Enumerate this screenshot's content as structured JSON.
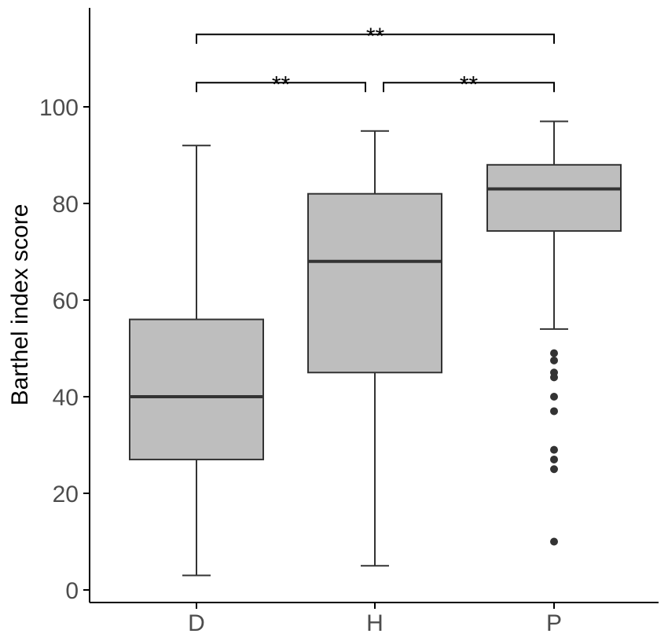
{
  "chart_data": {
    "type": "boxplot",
    "title": "",
    "xlabel": "",
    "ylabel": "Barthel index score",
    "ylim": [
      -2.5,
      119
    ],
    "yticks": [
      0,
      20,
      40,
      60,
      80,
      100
    ],
    "grid": false,
    "categories": [
      "D",
      "H",
      "P"
    ],
    "boxes": [
      {
        "category": "D",
        "whisker_low": 3,
        "q1": 27,
        "median": 40,
        "q3": 56,
        "whisker_high": 92,
        "outliers": []
      },
      {
        "category": "H",
        "whisker_low": 5,
        "q1": 45,
        "median": 68,
        "q3": 82,
        "whisker_high": 95,
        "outliers": []
      },
      {
        "category": "P",
        "whisker_low": 54,
        "q1": 74.3,
        "median": 83,
        "q3": 88,
        "whisker_high": 97,
        "outliers": [
          49,
          47.5,
          45,
          44,
          40,
          37,
          29,
          27,
          25,
          10
        ]
      }
    ],
    "comparisons": [
      {
        "from": "D",
        "to": "H",
        "label": "**",
        "y": 105
      },
      {
        "from": "H",
        "to": "P",
        "label": "**",
        "y": 105
      },
      {
        "from": "D",
        "to": "P",
        "label": "**",
        "y": 115
      }
    ],
    "colors": {
      "box_fill": "#bebebe",
      "line": "#333333",
      "axis": "#000000",
      "bracket": "#000000",
      "tick_text": "#4d4d4d"
    }
  }
}
